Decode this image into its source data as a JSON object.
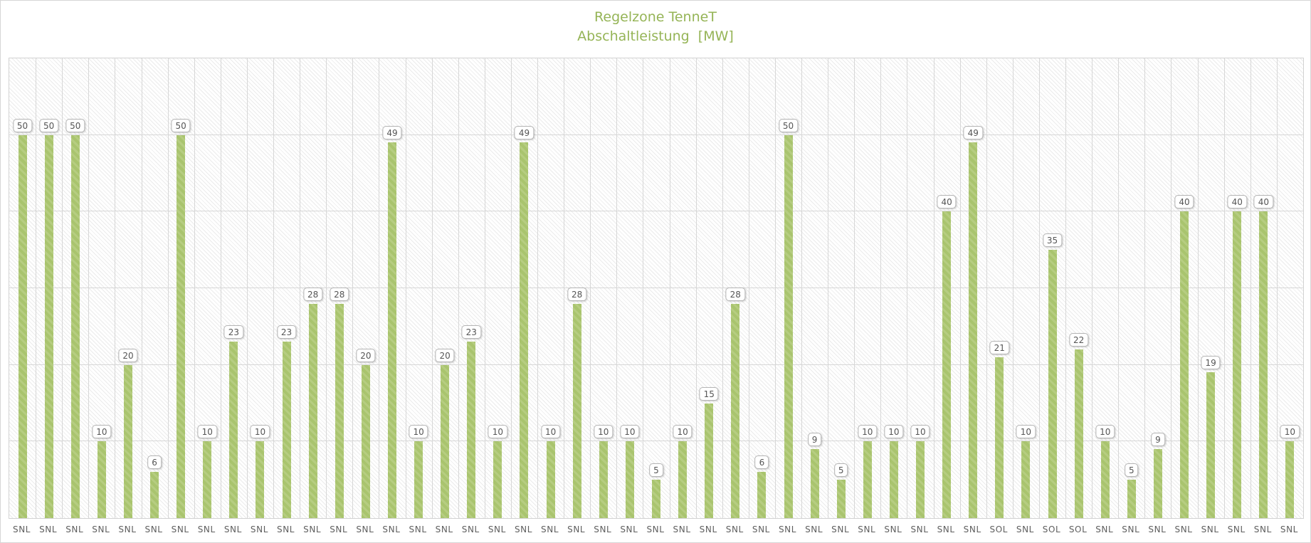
{
  "header": {
    "title": "Regelzone TenneT",
    "subtitle": "Abschaltleistung  [MW]"
  },
  "colors": {
    "title_text": "#95b456",
    "bar_fill": "#a9c46e",
    "bar_stripe": "#b6cd81",
    "gridline": "#d7d7d7",
    "plot_border": "#d2d2d2",
    "outer_border": "#d6d6d6",
    "value_label_text": "#555555",
    "axis_label_text": "#5e5e5e",
    "background": "#ffffff"
  },
  "chart_data": {
    "type": "bar",
    "title": "Regelzone TenneT",
    "subtitle": "Abschaltleistung  [MW]",
    "ylabel": "",
    "xlabel": "",
    "ylim": [
      0,
      60
    ],
    "grid": true,
    "gridline_step": 10,
    "legend": "none",
    "bar_color": "#a9c46e",
    "categories": [
      "SNL",
      "SNL",
      "SNL",
      "SNL",
      "SNL",
      "SNL",
      "SNL",
      "SNL",
      "SNL",
      "SNL",
      "SNL",
      "SNL",
      "SNL",
      "SNL",
      "SNL",
      "SNL",
      "SNL",
      "SNL",
      "SNL",
      "SNL",
      "SNL",
      "SNL",
      "SNL",
      "SNL",
      "SNL",
      "SNL",
      "SNL",
      "SNL",
      "SNL",
      "SNL",
      "SNL",
      "SNL",
      "SNL",
      "SNL",
      "SNL",
      "SNL",
      "SNL",
      "SOL",
      "SNL",
      "SOL",
      "SOL",
      "SNL",
      "SNL",
      "SNL",
      "SNL",
      "SNL",
      "SNL",
      "SNL",
      "SNL"
    ],
    "values": [
      50,
      50,
      50,
      10,
      20,
      6,
      50,
      10,
      23,
      10,
      23,
      28,
      28,
      20,
      49,
      10,
      20,
      23,
      10,
      49,
      10,
      28,
      10,
      10,
      5,
      10,
      15,
      28,
      6,
      50,
      9,
      5,
      10,
      10,
      10,
      40,
      49,
      21,
      10,
      35,
      22,
      10,
      5,
      9,
      40,
      19,
      40,
      40,
      10
    ]
  }
}
